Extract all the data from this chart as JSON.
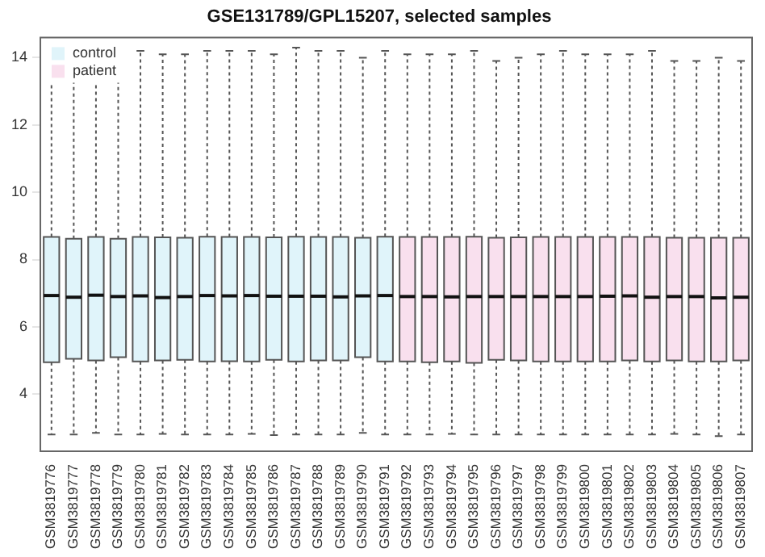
{
  "chart_data": {
    "type": "box",
    "title": "GSE131789/GPL15207, selected samples",
    "categories": [
      "GSM3819776",
      "GSM3819777",
      "GSM3819778",
      "GSM3819779",
      "GSM3819780",
      "GSM3819781",
      "GSM3819782",
      "GSM3819783",
      "GSM3819784",
      "GSM3819785",
      "GSM3819786",
      "GSM3819787",
      "GSM3819788",
      "GSM3819789",
      "GSM3819790",
      "GSM3819791",
      "GSM3819792",
      "GSM3819793",
      "GSM3819794",
      "GSM3819795",
      "GSM3819796",
      "GSM3819797",
      "GSM3819798",
      "GSM3819799",
      "GSM3819800",
      "GSM3819801",
      "GSM3819802",
      "GSM3819803",
      "GSM3819804",
      "GSM3819805",
      "GSM3819806",
      "GSM3819807"
    ],
    "series": [
      {
        "name": "control",
        "color": "#e0f4fa",
        "boxes": [
          {
            "low": 2.8,
            "q1": 4.95,
            "median": 6.93,
            "q3": 8.67,
            "high": 14.1
          },
          {
            "low": 2.8,
            "q1": 5.05,
            "median": 6.88,
            "q3": 8.62,
            "high": 14.0
          },
          {
            "low": 2.85,
            "q1": 5.0,
            "median": 6.94,
            "q3": 8.67,
            "high": 14.0
          },
          {
            "low": 2.8,
            "q1": 5.1,
            "median": 6.9,
            "q3": 8.62,
            "high": 13.9
          },
          {
            "low": 2.8,
            "q1": 4.97,
            "median": 6.92,
            "q3": 8.67,
            "high": 14.2
          },
          {
            "low": 2.82,
            "q1": 5.0,
            "median": 6.87,
            "q3": 8.66,
            "high": 14.1
          },
          {
            "low": 2.8,
            "q1": 5.02,
            "median": 6.9,
            "q3": 8.65,
            "high": 14.1
          },
          {
            "low": 2.8,
            "q1": 4.97,
            "median": 6.93,
            "q3": 8.68,
            "high": 14.2
          },
          {
            "low": 2.8,
            "q1": 4.98,
            "median": 6.92,
            "q3": 8.67,
            "high": 14.2
          },
          {
            "low": 2.82,
            "q1": 4.97,
            "median": 6.93,
            "q3": 8.67,
            "high": 14.2
          },
          {
            "low": 2.78,
            "q1": 5.02,
            "median": 6.91,
            "q3": 8.66,
            "high": 14.1
          },
          {
            "low": 2.8,
            "q1": 4.97,
            "median": 6.91,
            "q3": 8.68,
            "high": 14.3
          },
          {
            "low": 2.8,
            "q1": 5.0,
            "median": 6.91,
            "q3": 8.67,
            "high": 14.2
          },
          {
            "low": 2.8,
            "q1": 5.0,
            "median": 6.89,
            "q3": 8.67,
            "high": 14.2
          },
          {
            "low": 2.85,
            "q1": 5.1,
            "median": 6.92,
            "q3": 8.65,
            "high": 14.0
          },
          {
            "low": 2.8,
            "q1": 4.97,
            "median": 6.93,
            "q3": 8.68,
            "high": 14.2
          },
          null,
          null,
          null,
          null,
          null,
          null,
          null,
          null,
          null,
          null,
          null,
          null,
          null,
          null,
          null,
          null
        ]
      },
      {
        "name": "patient",
        "color": "#f9e0ee",
        "boxes": [
          null,
          null,
          null,
          null,
          null,
          null,
          null,
          null,
          null,
          null,
          null,
          null,
          null,
          null,
          null,
          null,
          {
            "low": 2.8,
            "q1": 4.97,
            "median": 6.9,
            "q3": 8.67,
            "high": 14.1
          },
          {
            "low": 2.8,
            "q1": 4.95,
            "median": 6.9,
            "q3": 8.67,
            "high": 14.1
          },
          {
            "low": 2.82,
            "q1": 4.97,
            "median": 6.89,
            "q3": 8.67,
            "high": 14.1
          },
          {
            "low": 2.8,
            "q1": 4.93,
            "median": 6.9,
            "q3": 8.68,
            "high": 14.2
          },
          {
            "low": 2.8,
            "q1": 5.02,
            "median": 6.9,
            "q3": 8.65,
            "high": 13.9
          },
          {
            "low": 2.8,
            "q1": 5.0,
            "median": 6.9,
            "q3": 8.66,
            "high": 14.0
          },
          {
            "low": 2.8,
            "q1": 4.97,
            "median": 6.9,
            "q3": 8.67,
            "high": 14.1
          },
          {
            "low": 2.8,
            "q1": 4.97,
            "median": 6.9,
            "q3": 8.67,
            "high": 14.2
          },
          {
            "low": 2.8,
            "q1": 4.97,
            "median": 6.9,
            "q3": 8.67,
            "high": 14.1
          },
          {
            "low": 2.8,
            "q1": 4.97,
            "median": 6.91,
            "q3": 8.67,
            "high": 14.1
          },
          {
            "low": 2.8,
            "q1": 5.0,
            "median": 6.92,
            "q3": 8.67,
            "high": 14.1
          },
          {
            "low": 2.8,
            "q1": 4.97,
            "median": 6.88,
            "q3": 8.67,
            "high": 14.2
          },
          {
            "low": 2.82,
            "q1": 5.0,
            "median": 6.9,
            "q3": 8.65,
            "high": 13.9
          },
          {
            "low": 2.8,
            "q1": 4.97,
            "median": 6.9,
            "q3": 8.65,
            "high": 13.9
          },
          {
            "low": 2.75,
            "q1": 4.97,
            "median": 6.86,
            "q3": 8.65,
            "high": 14.0
          },
          {
            "low": 2.8,
            "q1": 5.0,
            "median": 6.88,
            "q3": 8.65,
            "high": 13.9
          }
        ]
      }
    ],
    "ylim": [
      2.3,
      14.6
    ],
    "yticks": [
      4,
      6,
      8,
      10,
      12,
      14
    ],
    "grid": false,
    "legend": "top left"
  }
}
